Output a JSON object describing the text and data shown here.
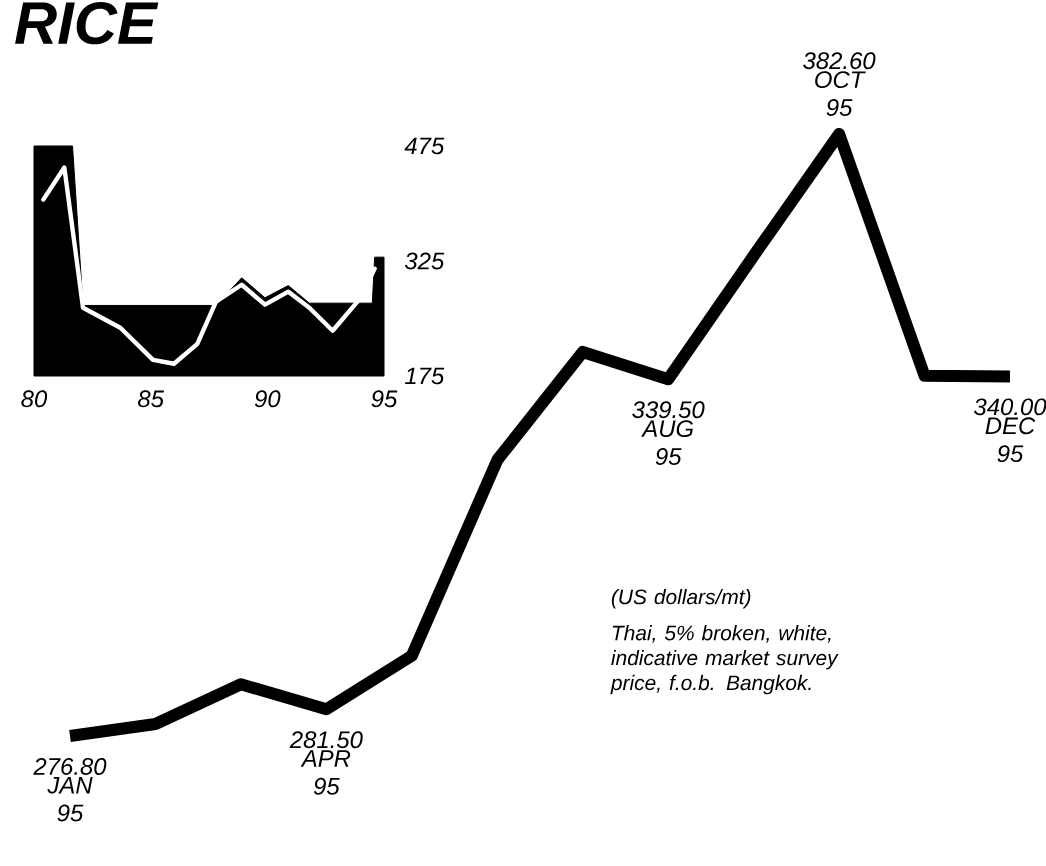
{
  "chart_data": [
    {
      "type": "line",
      "title": "RICE",
      "categories": [
        "JAN 95",
        null,
        null,
        "APR 95",
        null,
        null,
        null,
        "AUG 95",
        null,
        "OCT 95",
        null,
        "DEC 95"
      ],
      "values": [
        276.8,
        278.9,
        285.9,
        281.5,
        290.9,
        325.3,
        344.3,
        339.5,
        361.2,
        382.6,
        340.1,
        340.0
      ],
      "value_labels": [
        "276.80",
        null,
        null,
        "281.50",
        null,
        null,
        null,
        "339.50",
        null,
        "382.60",
        null,
        "340.00"
      ],
      "color": "#000000",
      "annotations": [
        "(US dollars/mt)",
        "Thai, 5% broken, white, indicative market survey price, f.o.b. Bangkok."
      ]
    },
    {
      "type": "line",
      "series": [
        {
          "type": "area",
          "color": "#000000",
          "x": [
            80,
            81.65,
            82.1,
            87.8,
            88.9,
            89.9,
            90.9,
            91.8,
            94.5,
            94.6,
            95
          ],
          "values": [
            475,
            475,
            267,
            267,
            303,
            277,
            293,
            270,
            270,
            330,
            330
          ]
        },
        {
          "type": "line",
          "color": "#ffffff",
          "x": [
            80.4,
            81.3,
            82.1,
            83.7,
            85.1,
            86.0,
            87.0,
            87.8,
            88.9,
            89.9,
            90.9,
            91.8,
            92.8,
            94.0,
            94.6
          ],
          "values": [
            405,
            447,
            264,
            238,
            196,
            191,
            217,
            272,
            294,
            268,
            285,
            264,
            234,
            277,
            315
          ]
        }
      ],
      "xlim": [
        80,
        95
      ],
      "xticks": [
        80,
        85,
        90,
        95
      ],
      "ylim": [
        175,
        475
      ],
      "yticks": [
        175,
        325,
        475
      ]
    }
  ]
}
